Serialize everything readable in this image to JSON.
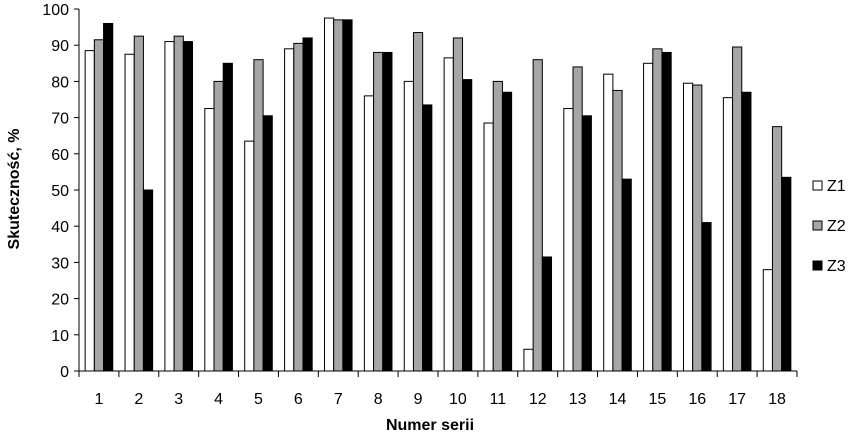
{
  "chart_data": {
    "type": "bar",
    "title": "",
    "xlabel": "Numer serii",
    "ylabel": "Skuteczność, %",
    "ylim": [
      0,
      100
    ],
    "yticks": [
      0,
      10,
      20,
      30,
      40,
      50,
      60,
      70,
      80,
      90,
      100
    ],
    "grid": false,
    "legend_position": "right",
    "categories": [
      "1",
      "2",
      "3",
      "4",
      "5",
      "6",
      "7",
      "8",
      "9",
      "10",
      "11",
      "12",
      "13",
      "14",
      "15",
      "16",
      "17",
      "18"
    ],
    "series": [
      {
        "name": "Z1",
        "color": "#ffffff",
        "values": [
          88.5,
          87.5,
          91,
          72.5,
          63.5,
          89,
          97.5,
          76,
          80,
          86.5,
          68.5,
          6,
          72.5,
          82,
          85,
          79.5,
          75.5,
          28
        ]
      },
      {
        "name": "Z2",
        "color": "#a6a6a6",
        "values": [
          91.5,
          92.5,
          92.5,
          80,
          86,
          90.5,
          97,
          88,
          93.5,
          92,
          80,
          86,
          84,
          77.5,
          89,
          79,
          89.5,
          67.5
        ]
      },
      {
        "name": "Z3",
        "color": "#000000",
        "values": [
          96,
          50,
          91,
          85,
          70.5,
          92,
          97,
          88,
          73.5,
          80.5,
          77,
          31.5,
          70.5,
          53,
          88,
          41,
          77,
          53.5
        ]
      }
    ]
  }
}
